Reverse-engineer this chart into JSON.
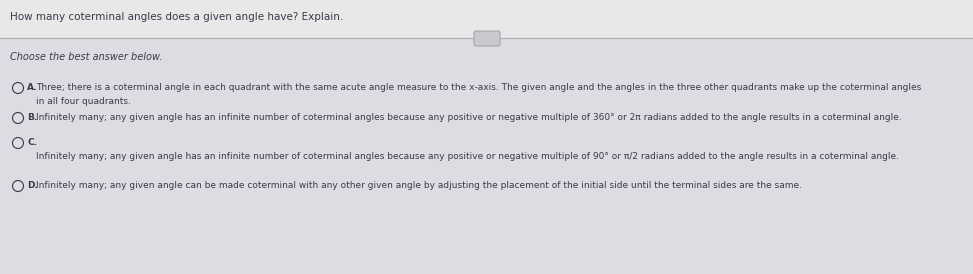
{
  "title": "How many coterminal angles does a given angle have? Explain.",
  "subtitle": "Choose the best answer below.",
  "bg_color": "#e8e8e8",
  "lower_bg_color": "#e4e4e8",
  "text_color": "#3a3a4a",
  "sep_color": "#b0b0b8",
  "options": [
    {
      "label": "A.",
      "line1": "Three; there is a coterminal angle in each quadrant with the same acute angle measure to the x-axis. The given angle and the angles in the three other quadrants make up the coterminal angles",
      "line2": "in all four quadrants."
    },
    {
      "label": "B.",
      "line1": "Infinitely many; any given angle has an infinite number of coterminal angles because any positive or negative multiple of 360° or 2π radians added to the angle results in a coterminal angle.",
      "line2": null
    },
    {
      "label": "C.",
      "label_line": "C.",
      "text_line": "Infinitely many; any given angle has an infinite number of coterminal angles because any positive or negative multiple of 90° or π/2 radians added to the angle results in a coterminal angle."
    },
    {
      "label": "D.",
      "line1": "Infinitely many; any given angle can be made coterminal with any other given angle by adjusting the placement of the initial side until the terminal sides are the same.",
      "line2": null
    }
  ]
}
